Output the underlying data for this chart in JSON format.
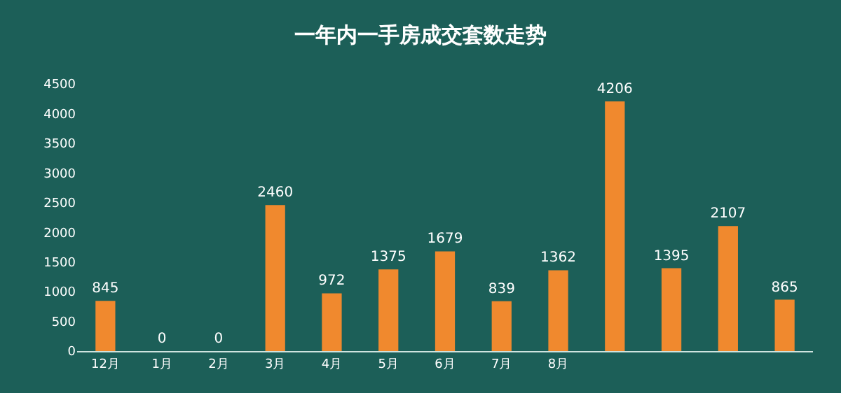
{
  "chart_data": {
    "type": "bar",
    "title": "一年内一手房成交套数走势",
    "categories": [
      "12月",
      "1月",
      "2月",
      "3月",
      "4月",
      "5月",
      "6月",
      "7月",
      "8月",
      null,
      null,
      null,
      null
    ],
    "values": [
      845,
      0,
      0,
      2460,
      972,
      1375,
      1679,
      839,
      1362,
      4206,
      1395,
      2107,
      865
    ],
    "color": "#f0892e",
    "data_labels": true,
    "legend": false,
    "ylim": [
      0,
      4500
    ],
    "yticks": [
      0,
      500,
      1000,
      1500,
      2000,
      2500,
      3000,
      3500,
      4000,
      4500
    ]
  }
}
